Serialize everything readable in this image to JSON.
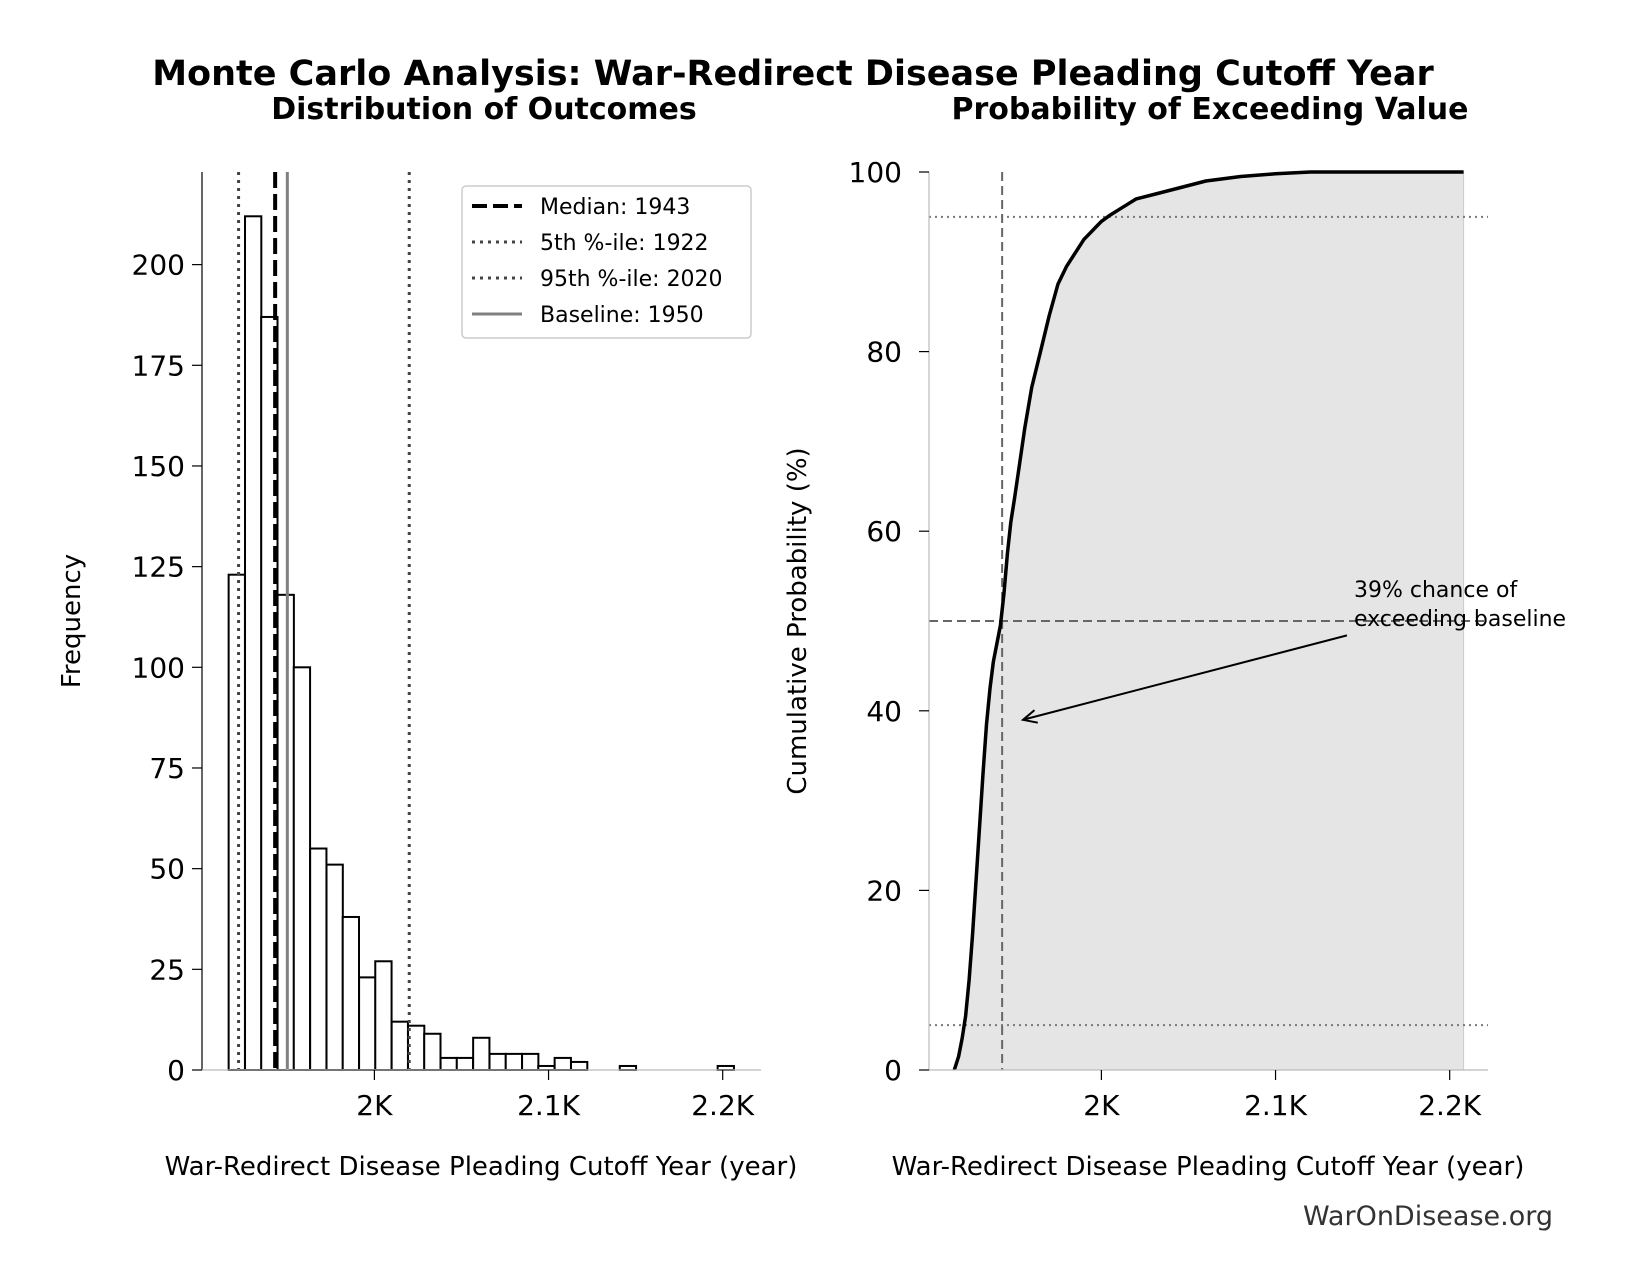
{
  "suptitle": "Monte Carlo Analysis: War-Redirect Disease Pleading Cutoff Year",
  "watermark": "WarOnDisease.org",
  "colors": {
    "ink": "#000000",
    "baseline": "#808080",
    "fill": "#e5e5e5",
    "ref": "#707070"
  },
  "chart_data": [
    {
      "type": "bar",
      "title": "Distribution of Outcomes",
      "xlabel": "War-Redirect Disease Pleading Cutoff Year (year)",
      "ylabel": "Frequency",
      "xlim": [
        1901,
        2222
      ],
      "ylim": [
        0,
        223
      ],
      "xticks": [
        2000,
        2100,
        2200
      ],
      "xtick_labels": [
        "2K",
        "2.1K",
        "2.2K"
      ],
      "yticks": [
        0,
        25,
        50,
        75,
        100,
        125,
        150,
        175,
        200
      ],
      "yticks_labels": [
        "0",
        "25",
        "50",
        "75",
        "100",
        "125",
        "150",
        "175",
        "200"
      ],
      "bin_width": 9.36,
      "bin_starts": [
        1916.3,
        1925.7,
        1935.0,
        1944.4,
        1953.7,
        1963.1,
        1972.5,
        1981.8,
        1991.2,
        2000.5,
        2009.9,
        2019.3,
        2028.6,
        2038.0,
        2047.3,
        2056.7,
        2066.1,
        2075.4,
        2084.8,
        2094.1,
        2103.5,
        2112.9,
        2122.2,
        2131.6,
        2140.9,
        2150.3,
        2159.7,
        2169.0,
        2178.4,
        2187.7,
        2197.1
      ],
      "values": [
        123,
        212,
        187,
        118,
        100,
        55,
        51,
        38,
        23,
        27,
        12,
        11,
        9,
        3,
        3,
        8,
        4,
        4,
        4,
        1,
        3,
        2,
        0,
        0,
        1,
        0,
        0,
        0,
        0,
        0,
        1
      ],
      "legend_position": "top-right",
      "reference_lines": [
        {
          "label": "Median: 1943",
          "x": 1943,
          "style": "dashed"
        },
        {
          "label": "5th %-ile: 1922",
          "x": 1922,
          "style": "dotted"
        },
        {
          "label": "95th %-ile: 2020",
          "x": 2020,
          "style": "dotted"
        },
        {
          "label": "Baseline: 1950",
          "x": 1950,
          "style": "solid"
        }
      ]
    },
    {
      "type": "area",
      "title": "Probability of Exceeding Value",
      "xlabel": "War-Redirect Disease Pleading Cutoff Year (year)",
      "ylabel": "Cumulative Probability (%)",
      "xlim": [
        1901,
        2222
      ],
      "ylim": [
        0,
        100
      ],
      "xticks": [
        2000,
        2100,
        2200
      ],
      "xtick_labels": [
        "2K",
        "2.1K",
        "2.2K"
      ],
      "yticks": [
        0,
        20,
        40,
        60,
        80,
        100
      ],
      "yticks_labels": [
        "0",
        "20",
        "40",
        "60",
        "80",
        "100"
      ],
      "x": [
        1915.5,
        1918,
        1920,
        1922,
        1924,
        1926,
        1928,
        1930,
        1932,
        1934,
        1936,
        1938,
        1940,
        1942,
        1944,
        1946,
        1948,
        1950,
        1953,
        1956,
        1960,
        1965,
        1970,
        1975,
        1980,
        1985,
        1990,
        1995,
        2000,
        2005,
        2010,
        2015,
        2020,
        2030,
        2040,
        2050,
        2060,
        2080,
        2100,
        2120,
        2150,
        2208
      ],
      "values": [
        0,
        1.5,
        3.5,
        6,
        10,
        15,
        21,
        27,
        33,
        38.5,
        42.5,
        45.5,
        47.5,
        49.5,
        53,
        57.5,
        61,
        63.5,
        67.5,
        71.5,
        76,
        80,
        84,
        87.5,
        89.5,
        91,
        92.5,
        93.5,
        94.5,
        95.2,
        95.8,
        96.4,
        97,
        97.5,
        98,
        98.5,
        99,
        99.5,
        99.8,
        100,
        100,
        100
      ],
      "reference_lines": [
        {
          "axis": "y",
          "value": 95,
          "style": "dotted"
        },
        {
          "axis": "y",
          "value": 50,
          "style": "dashed"
        },
        {
          "axis": "y",
          "value": 5,
          "style": "dotted"
        },
        {
          "axis": "x",
          "value": 1943,
          "style": "dashed"
        }
      ],
      "annotation": {
        "lines": [
          "39% chance of",
          "exceeding baseline"
        ],
        "arrow_target": {
          "x": 1955,
          "y": 39
        },
        "arrow_tail": {
          "x": 2141,
          "y": 48.4
        }
      }
    }
  ]
}
